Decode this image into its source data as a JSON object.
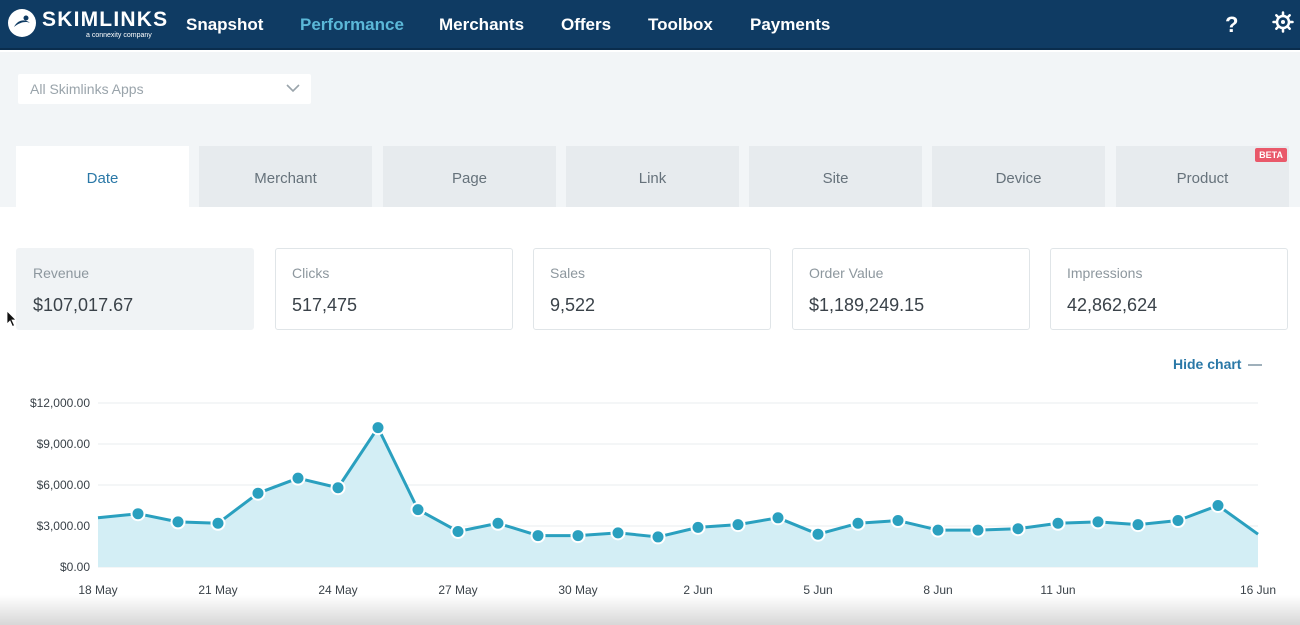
{
  "brand": {
    "name": "SKIMLINKS",
    "tagline": "a connexity company"
  },
  "nav": {
    "items": [
      "Snapshot",
      "Performance",
      "Merchants",
      "Offers",
      "Toolbox",
      "Payments"
    ],
    "active": "Performance",
    "help_icon": "help-icon",
    "settings_icon": "gear-icon"
  },
  "app_select": {
    "value": "All Skimlinks Apps",
    "icon": "chevron-down-icon"
  },
  "tabs": [
    {
      "label": "Date"
    },
    {
      "label": "Merchant"
    },
    {
      "label": "Page"
    },
    {
      "label": "Link"
    },
    {
      "label": "Site"
    },
    {
      "label": "Device"
    },
    {
      "label": "Product",
      "badge": "BETA"
    }
  ],
  "active_tab": "Date",
  "metrics": [
    {
      "label": "Revenue",
      "value": "$107,017.67"
    },
    {
      "label": "Clicks",
      "value": "517,475"
    },
    {
      "label": "Sales",
      "value": "9,522"
    },
    {
      "label": "Order Value",
      "value": "$1,189,249.15"
    },
    {
      "label": "Impressions",
      "value": "42,862,624"
    }
  ],
  "hide_chart_label": "Hide chart",
  "colors": {
    "nav_bg": "#0f3b63",
    "accent": "#2a78a7",
    "line": "#2aa0bf",
    "fill": "#d3eef5",
    "badge": "#e9596a"
  },
  "chart_data": {
    "type": "area",
    "title": "",
    "xlabel": "",
    "ylabel": "",
    "ylim": [
      0,
      12000
    ],
    "y_ticks": [
      "$12,000.00",
      "$9,000.00",
      "$6,000.00",
      "$3,000.00",
      "$0.00"
    ],
    "x_ticks": [
      "18 May",
      "21 May",
      "24 May",
      "27 May",
      "30 May",
      "2 Jun",
      "5 Jun",
      "8 Jun",
      "11 Jun",
      "16 Jun"
    ],
    "x": [
      "18 May",
      "19 May",
      "20 May",
      "21 May",
      "22 May",
      "23 May",
      "24 May",
      "25 May",
      "26 May",
      "27 May",
      "28 May",
      "29 May",
      "30 May",
      "31 May",
      "1 Jun",
      "2 Jun",
      "3 Jun",
      "4 Jun",
      "5 Jun",
      "6 Jun",
      "7 Jun",
      "8 Jun",
      "9 Jun",
      "10 Jun",
      "11 Jun",
      "12 Jun",
      "13 Jun",
      "14 Jun",
      "15 Jun",
      "16 Jun"
    ],
    "values": [
      3600,
      3900,
      3300,
      3200,
      5400,
      6500,
      5800,
      10200,
      4200,
      2600,
      3200,
      2300,
      2300,
      2500,
      2200,
      2900,
      3100,
      3600,
      2400,
      3200,
      3400,
      2700,
      2700,
      2800,
      3200,
      3300,
      3100,
      3400,
      4500,
      2400
    ],
    "markers": true,
    "grid": true
  }
}
